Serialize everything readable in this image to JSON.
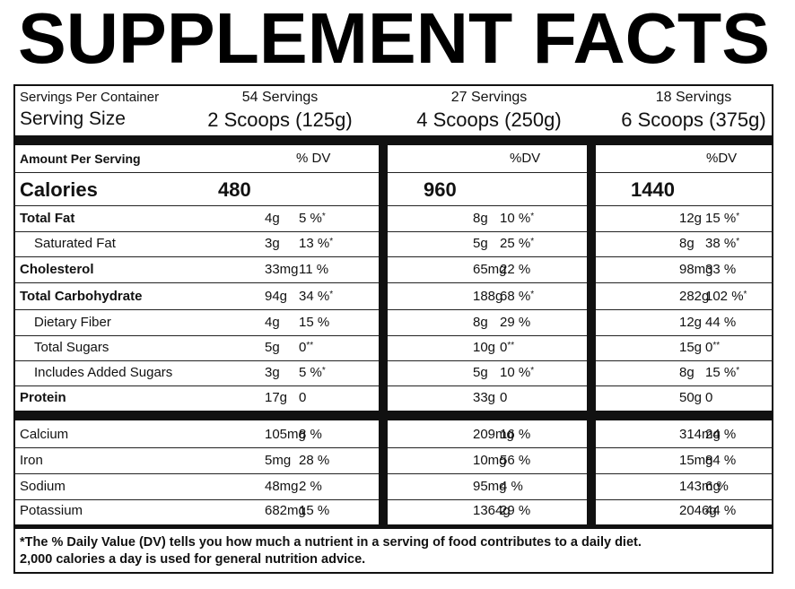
{
  "title": "SUPPLEMENT FACTS",
  "servings": {
    "per_container_label": "Servings Per Container",
    "size_label": "Serving Size",
    "columns": [
      {
        "per_container": "54 Servings",
        "size": "2 Scoops (125g)"
      },
      {
        "per_container": "27 Servings",
        "size": "4 Scoops (250g)"
      },
      {
        "per_container": "18 Servings",
        "size": "6 Scoops (375g)"
      }
    ]
  },
  "header": {
    "label": "Amount Per Serving",
    "dv": [
      "% DV",
      "%DV",
      "%DV"
    ]
  },
  "calories": {
    "label": "Calories",
    "values": [
      "480",
      "960",
      "1440"
    ]
  },
  "nutrients": [
    {
      "label": "Total Fat",
      "bold": true,
      "cells": [
        {
          "amount": "4g",
          "dv": "5 %",
          "mark": "*"
        },
        {
          "amount": "8g",
          "dv": "10 %",
          "mark": "*"
        },
        {
          "amount": "12g",
          "dv": "15 %",
          "mark": "*"
        }
      ]
    },
    {
      "label": "Saturated Fat",
      "indent": true,
      "cells": [
        {
          "amount": "3g",
          "dv": "13 %",
          "mark": "*"
        },
        {
          "amount": "5g",
          "dv": "25 %",
          "mark": "*"
        },
        {
          "amount": "8g",
          "dv": "38 %",
          "mark": "*"
        }
      ]
    },
    {
      "label": "Cholesterol",
      "bold": true,
      "cells": [
        {
          "amount": "33mg",
          "dv": "11 %"
        },
        {
          "amount": "65mg",
          "dv": "22 %"
        },
        {
          "amount": "98mg",
          "dv": "33 %"
        }
      ]
    },
    {
      "label": "Total Carbohydrate",
      "bold": true,
      "cells": [
        {
          "amount": "94g",
          "dv": "34 %",
          "mark": "*"
        },
        {
          "amount": "188g",
          "dv": "68 %",
          "mark": "*"
        },
        {
          "amount": "282g",
          "dv": "102 %",
          "mark": "*"
        }
      ]
    },
    {
      "label": "Dietary Fiber",
      "indent": true,
      "cells": [
        {
          "amount": "4g",
          "dv": "15 %"
        },
        {
          "amount": "8g",
          "dv": "29 %"
        },
        {
          "amount": "12g",
          "dv": "44 %"
        }
      ]
    },
    {
      "label": "Total Sugars",
      "indent": true,
      "cells": [
        {
          "amount": "5g",
          "dv": "0",
          "mark": "**"
        },
        {
          "amount": "10g",
          "dv": "0",
          "mark": "**"
        },
        {
          "amount": "15g",
          "dv": "0",
          "mark": "**"
        }
      ]
    },
    {
      "label": "Includes Added Sugars",
      "indent": true,
      "cells": [
        {
          "amount": "3g",
          "dv": "5 %",
          "mark": "*"
        },
        {
          "amount": "5g",
          "dv": "10 %",
          "mark": "*"
        },
        {
          "amount": "8g",
          "dv": "15 %",
          "mark": "*"
        }
      ]
    },
    {
      "label": "Protein",
      "bold": true,
      "cells": [
        {
          "amount": "17g",
          "dv": "0"
        },
        {
          "amount": "33g",
          "dv": "0"
        },
        {
          "amount": "50g",
          "dv": "0"
        }
      ]
    }
  ],
  "minerals": [
    {
      "label": "Calcium",
      "cells": [
        {
          "amount": "105mg",
          "dv": "8 %"
        },
        {
          "amount": "209mg",
          "dv": "16 %"
        },
        {
          "amount": "314mg",
          "dv": "24 %"
        }
      ]
    },
    {
      "label": "Iron",
      "cells": [
        {
          "amount": "5mg",
          "dv": "28 %"
        },
        {
          "amount": "10mg",
          "dv": "56 %"
        },
        {
          "amount": "15mg",
          "dv": "84 %"
        }
      ]
    },
    {
      "label": "Sodium",
      "cells": [
        {
          "amount": "48mg",
          "dv": "2 %"
        },
        {
          "amount": "95mg",
          "dv": "4 %"
        },
        {
          "amount": "143mg",
          "dv": "6 %"
        }
      ]
    },
    {
      "label": "Potassium",
      "cells": [
        {
          "amount": "682mg",
          "dv": "15 %"
        },
        {
          "amount": "1364g",
          "dv": "29 %"
        },
        {
          "amount": "2046g",
          "dv": "44 %"
        }
      ]
    }
  ],
  "footnote": [
    "*The % Daily Value (DV) tells you how much a nutrient in a serving of food contributes to a daily diet.",
    "2,000 calories a day is used for general nutrition advice."
  ]
}
